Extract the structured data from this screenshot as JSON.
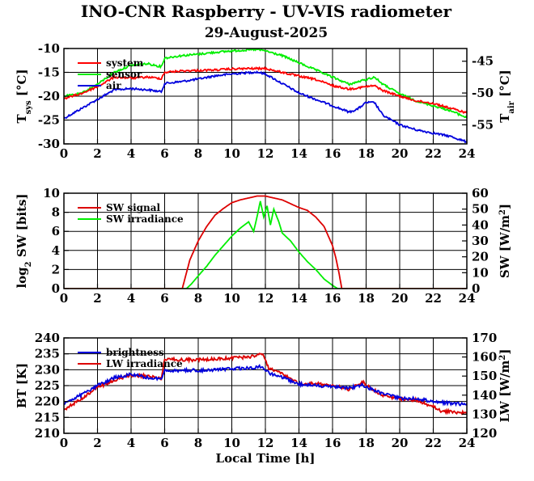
{
  "page": {
    "title": "INO-CNR Raspberry - UV-VIS radiometer",
    "date": "29-August-2025"
  },
  "chart_data": [
    {
      "type": "line",
      "xlim": [
        0,
        24
      ],
      "x_ticks": [
        0,
        2,
        4,
        6,
        8,
        10,
        12,
        14,
        16,
        18,
        20,
        22,
        24
      ],
      "ylim_left": [
        -30,
        -10
      ],
      "y_ticks_left": [
        -30,
        -25,
        -20,
        -15,
        -10
      ],
      "ylim_right": [
        -58,
        -43
      ],
      "y_ticks_right": [
        -55,
        -50,
        -45
      ],
      "ylabel_left": "T_sys [°C]",
      "ylabel_right": "T_air [°C]",
      "legend": [
        "system",
        "sensor",
        "air"
      ],
      "legend_position": "top-left",
      "grid": true,
      "series": [
        {
          "name": "system",
          "axis": "left",
          "color": "#ff0000",
          "x": [
            0,
            1,
            2,
            3,
            4,
            5,
            5.8,
            6,
            7,
            8,
            9,
            10,
            11,
            12,
            13,
            14,
            15,
            16,
            17,
            18,
            18.5,
            19,
            20,
            21,
            22,
            23,
            24
          ],
          "y": [
            -20.5,
            -19.5,
            -18,
            -16,
            -16.2,
            -16,
            -16.3,
            -15,
            -14.7,
            -14.6,
            -14.5,
            -14.3,
            -14.2,
            -14.2,
            -15,
            -15.8,
            -16.5,
            -17.8,
            -18.5,
            -18,
            -17.8,
            -18.8,
            -20,
            -21,
            -21.5,
            -22.5,
            -23.5
          ]
        },
        {
          "name": "sensor",
          "axis": "left",
          "color": "#00ee00",
          "x": [
            0,
            1,
            2,
            3,
            4,
            5,
            5.8,
            6,
            7,
            8,
            9,
            10,
            11,
            11.5,
            12,
            13,
            14,
            15,
            16,
            17,
            18,
            18.5,
            19,
            20,
            21,
            22,
            23,
            24
          ],
          "y": [
            -20,
            -19.5,
            -17.5,
            -15,
            -13.5,
            -13.2,
            -13.8,
            -12,
            -11.5,
            -11.2,
            -10.8,
            -10.5,
            -10.3,
            -10.2,
            -10.5,
            -11.5,
            -13,
            -14.5,
            -16,
            -17.5,
            -16.5,
            -16,
            -17.5,
            -19.5,
            -21,
            -22,
            -23,
            -24.5
          ]
        },
        {
          "name": "air",
          "axis": "right",
          "color": "#0000dd",
          "x": [
            0,
            1,
            2,
            3,
            4,
            5,
            5.8,
            6,
            7,
            8,
            9,
            10,
            11,
            11.5,
            12,
            13,
            14,
            15,
            16,
            17,
            17.5,
            18,
            18.5,
            19,
            20,
            21,
            22,
            23,
            24
          ],
          "y": [
            -54,
            -52.5,
            -51,
            -49.5,
            -49.3,
            -49.5,
            -49.8,
            -48.5,
            -48.2,
            -47.8,
            -47.3,
            -47,
            -46.8,
            -46.7,
            -47,
            -48.5,
            -50,
            -51,
            -52,
            -53,
            -52.5,
            -51.5,
            -51.5,
            -53.5,
            -55,
            -55.8,
            -56.3,
            -56.8,
            -57.7
          ]
        }
      ]
    },
    {
      "type": "line",
      "xlim": [
        0,
        24
      ],
      "x_ticks": [
        0,
        2,
        4,
        6,
        8,
        10,
        12,
        14,
        16,
        18,
        20,
        22,
        24
      ],
      "ylim_left": [
        0,
        10
      ],
      "y_ticks_left": [
        0,
        2,
        4,
        6,
        8,
        10
      ],
      "ylim_right": [
        0,
        60
      ],
      "y_ticks_right": [
        0,
        10,
        20,
        30,
        40,
        50,
        60
      ],
      "ylabel_left": "log2 SW [bits]",
      "ylabel_right": "SW [W/m2]",
      "legend": [
        "SW signal",
        "SW irradiance"
      ],
      "legend_position": "top-left",
      "grid": true,
      "series": [
        {
          "name": "SW signal",
          "axis": "left",
          "color": "#dd0000",
          "x": [
            0,
            7.05,
            7.2,
            7.5,
            8,
            8.5,
            9,
            9.5,
            10,
            10.5,
            11,
            11.5,
            12,
            12.5,
            13,
            13.5,
            14,
            14.5,
            15,
            15.5,
            16,
            16.2,
            16.4,
            16.55,
            24
          ],
          "y": [
            0,
            0,
            1,
            3,
            5,
            6.5,
            7.7,
            8.4,
            9.0,
            9.3,
            9.5,
            9.7,
            9.7,
            9.5,
            9.3,
            8.9,
            8.5,
            8.2,
            7.5,
            6.5,
            4.5,
            3.2,
            1.5,
            0,
            0
          ]
        },
        {
          "name": "SW irradiance",
          "axis": "right",
          "color": "#00ee00",
          "x": [
            0,
            7.3,
            7.6,
            8,
            8.5,
            9,
            9.5,
            10,
            10.5,
            11,
            11.3,
            11.5,
            11.7,
            11.9,
            12.1,
            12.3,
            12.5,
            12.8,
            13,
            13.5,
            14,
            14.5,
            15,
            15.5,
            16,
            16.3,
            24
          ],
          "y": [
            0,
            0,
            3,
            8,
            14,
            21,
            27,
            33,
            38,
            42,
            36,
            45,
            55,
            45,
            52,
            40,
            50,
            42,
            35,
            30,
            23,
            17,
            12,
            6,
            2,
            0,
            0
          ]
        }
      ]
    },
    {
      "type": "line",
      "xlim": [
        0,
        24
      ],
      "x_ticks": [
        0,
        2,
        4,
        6,
        8,
        10,
        12,
        14,
        16,
        18,
        20,
        22,
        24
      ],
      "xlabel": "Local Time [h]",
      "ylim_left": [
        210,
        240
      ],
      "y_ticks_left": [
        210,
        215,
        220,
        225,
        230,
        235,
        240
      ],
      "ylim_right": [
        120,
        170
      ],
      "y_ticks_right": [
        120,
        130,
        140,
        150,
        160,
        170
      ],
      "ylabel_left": "BT [K]",
      "ylabel_right": "LW [W/m2]",
      "legend": [
        "brightness",
        "LW irradiance"
      ],
      "legend_position": "top-left",
      "grid": true,
      "series": [
        {
          "name": "brightness",
          "axis": "left",
          "color": "#0000dd",
          "x": [
            0,
            1,
            2,
            3,
            4,
            5,
            5.8,
            6,
            7,
            8,
            9,
            10,
            11,
            11.8,
            12.2,
            13,
            14,
            15,
            16,
            17,
            17.8,
            18,
            19,
            20,
            21,
            22,
            23,
            24
          ],
          "y": [
            219.5,
            222,
            225,
            227.5,
            228.5,
            227.5,
            227,
            229.5,
            229.8,
            229.8,
            230,
            230.3,
            230.5,
            231,
            229,
            227.5,
            225.5,
            225,
            224.8,
            224.3,
            225.2,
            224.5,
            222.5,
            221,
            221,
            220,
            219.5,
            219
          ]
        },
        {
          "name": "LW irradiance",
          "axis": "right",
          "color": "#dd0000",
          "x": [
            0,
            1,
            2,
            3,
            4,
            5,
            5.8,
            6,
            7,
            8,
            9,
            10,
            11,
            11.8,
            12.2,
            13,
            14,
            15,
            16,
            17,
            17.8,
            18,
            19,
            20,
            21,
            22,
            22.5,
            23,
            24
          ],
          "y": [
            132,
            138,
            144,
            148,
            150.5,
            150,
            148.5,
            159,
            158.5,
            158.5,
            159,
            159.5,
            160,
            162,
            154,
            151,
            146,
            146,
            145,
            143,
            147,
            145,
            140,
            138,
            137.5,
            134,
            131.5,
            131.5,
            130.5
          ]
        }
      ]
    }
  ]
}
